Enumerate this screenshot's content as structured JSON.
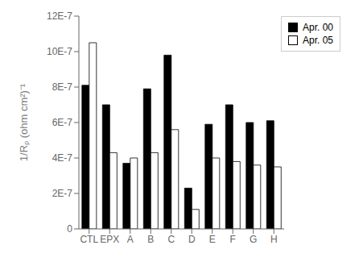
{
  "chart_data": {
    "type": "bar",
    "y_label": "1/Rₚ (ohm cm²)⁻¹",
    "categories": [
      "CTL",
      "EPX",
      "A",
      "B",
      "C",
      "D",
      "E",
      "F",
      "G",
      "H"
    ],
    "series": [
      {
        "name": "Apr. 00",
        "color": "#000000",
        "values": [
          8.1e-07,
          7e-07,
          3.7e-07,
          7.9e-07,
          9.8e-07,
          2.3e-07,
          5.9e-07,
          7e-07,
          6e-07,
          6.1e-07
        ]
      },
      {
        "name": "Apr. 05",
        "color": "#ffffff",
        "values": [
          1.05e-06,
          4.3e-07,
          4e-07,
          4.3e-07,
          5.6e-07,
          1.1e-07,
          4e-07,
          3.8e-07,
          3.6e-07,
          3.5e-07
        ]
      }
    ],
    "ylim": [
      0,
      1.2e-06
    ],
    "yticks": [
      0,
      {
        "value": 2e-07,
        "label": "2E-7"
      },
      {
        "value": 4e-07,
        "label": "4E-7"
      },
      {
        "value": 6e-07,
        "label": "6E-7"
      },
      {
        "value": 8e-07,
        "label": "8E-7"
      },
      {
        "value": 1e-06,
        "label": "10E-7"
      },
      {
        "value": 1.2e-06,
        "label": "12E-7"
      }
    ],
    "grid": false,
    "legend": "upper right"
  }
}
